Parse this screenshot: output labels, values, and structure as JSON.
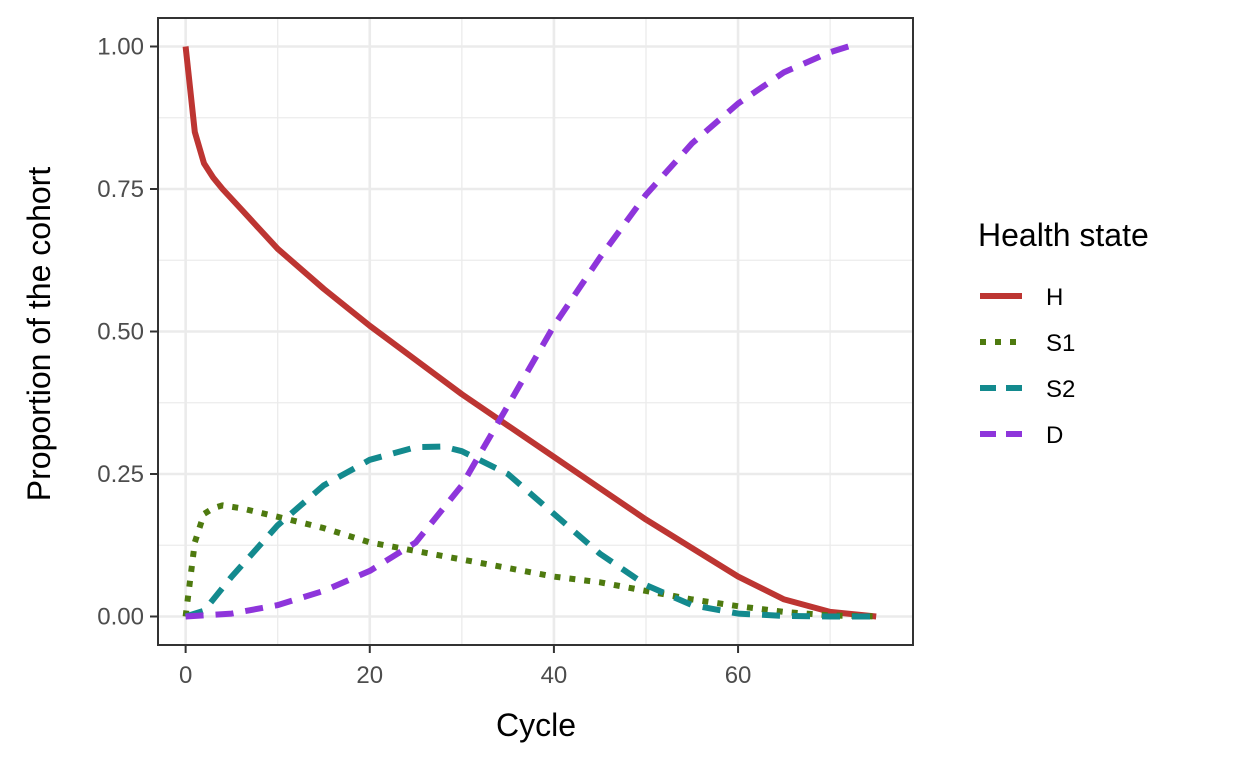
{
  "chart_data": {
    "type": "line",
    "title": "",
    "xlabel": "Cycle",
    "ylabel": "Proportion of the cohort",
    "xlim": [
      -3,
      79
    ],
    "ylim": [
      -0.05,
      1.05
    ],
    "x_ticks": [
      0,
      20,
      40,
      60
    ],
    "x_tick_labels": [
      "0",
      "20",
      "40",
      "60"
    ],
    "y_ticks": [
      0,
      0.25,
      0.5,
      0.75,
      1
    ],
    "y_tick_labels": [
      "0.00",
      "0.25",
      "0.50",
      "0.75",
      "1.00"
    ],
    "grid": true,
    "legend": {
      "title": "Health state",
      "position": "right"
    },
    "series": [
      {
        "name": "H",
        "color": "#BD3532",
        "dash": "solid",
        "x": [
          0,
          1,
          2,
          3,
          4,
          6,
          8,
          10,
          15,
          20,
          25,
          30,
          35,
          40,
          45,
          50,
          55,
          60,
          65,
          70,
          75
        ],
        "y": [
          1.0,
          0.85,
          0.795,
          0.77,
          0.75,
          0.715,
          0.68,
          0.645,
          0.575,
          0.51,
          0.45,
          0.39,
          0.335,
          0.28,
          0.225,
          0.17,
          0.12,
          0.07,
          0.03,
          0.008,
          0.0
        ]
      },
      {
        "name": "S1",
        "color": "#4E7A0F",
        "dash": "dotted",
        "x": [
          0,
          1,
          2,
          3,
          4,
          6,
          10,
          15,
          20,
          25,
          30,
          35,
          40,
          45,
          50,
          55,
          60,
          65,
          70,
          75
        ],
        "y": [
          0.0,
          0.13,
          0.18,
          0.19,
          0.195,
          0.19,
          0.175,
          0.155,
          0.13,
          0.115,
          0.1,
          0.085,
          0.07,
          0.06,
          0.045,
          0.03,
          0.018,
          0.008,
          0.002,
          0.0
        ]
      },
      {
        "name": "S2",
        "color": "#138A8E",
        "dash": "dashed",
        "x": [
          0,
          2,
          5,
          10,
          15,
          20,
          25,
          28,
          30,
          35,
          40,
          45,
          50,
          55,
          60,
          65,
          70,
          75
        ],
        "y": [
          0.0,
          0.01,
          0.07,
          0.16,
          0.23,
          0.275,
          0.297,
          0.298,
          0.29,
          0.25,
          0.18,
          0.11,
          0.055,
          0.02,
          0.005,
          0.001,
          0.0,
          0.0
        ]
      },
      {
        "name": "D",
        "color": "#8E35DB",
        "dash": "dashed",
        "x": [
          0,
          5,
          10,
          15,
          20,
          25,
          30,
          35,
          40,
          45,
          50,
          55,
          60,
          65,
          70,
          72
        ],
        "y": [
          0.0,
          0.005,
          0.02,
          0.045,
          0.08,
          0.13,
          0.23,
          0.37,
          0.51,
          0.63,
          0.74,
          0.83,
          0.9,
          0.955,
          0.99,
          1.0
        ]
      }
    ]
  }
}
